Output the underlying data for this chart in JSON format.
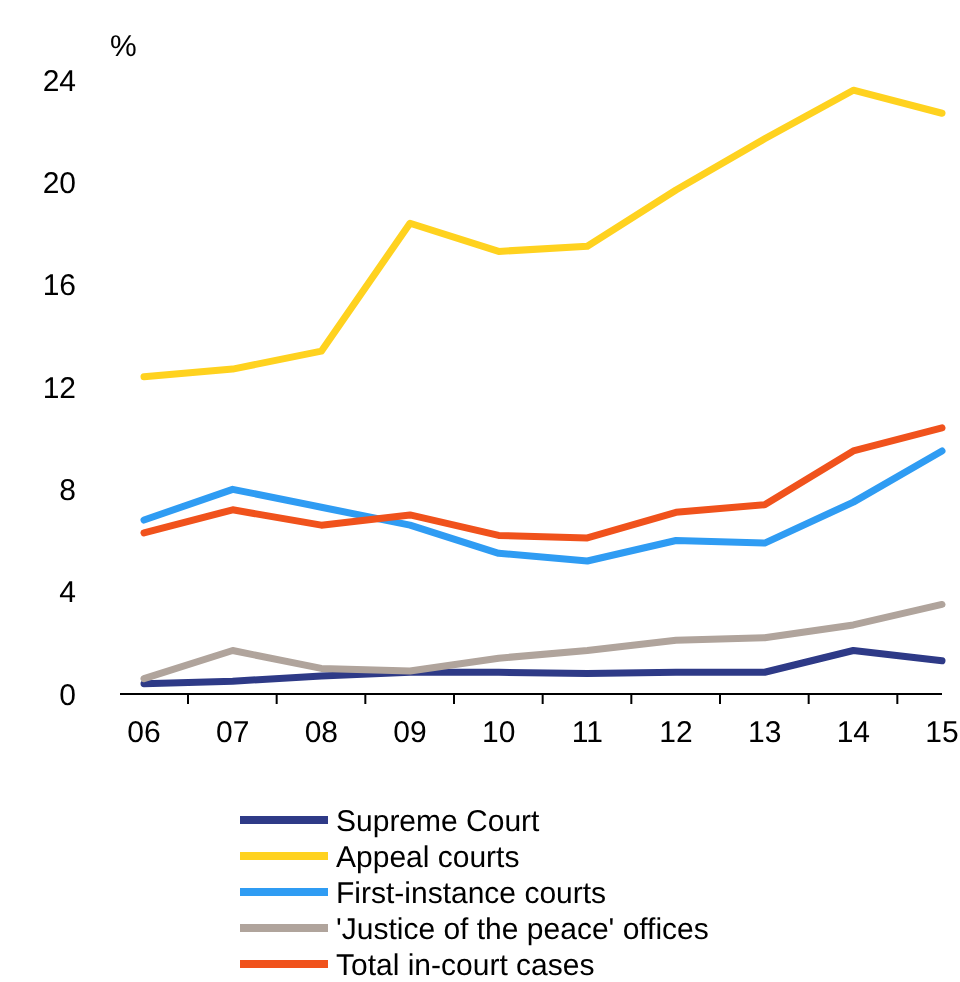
{
  "chart_data": {
    "type": "line",
    "ylabel": "%",
    "categories": [
      "06",
      "07",
      "08",
      "09",
      "10",
      "11",
      "12",
      "13",
      "14",
      "15"
    ],
    "ylim": [
      0,
      24
    ],
    "yticks": [
      0,
      4,
      8,
      12,
      16,
      20,
      24
    ],
    "grid": false,
    "legend": "bottom",
    "marker": "none",
    "line_style": "solid",
    "series": [
      {
        "name": "Supreme Court",
        "color": "#2e3a87",
        "values": [
          0.4,
          0.5,
          0.7,
          0.85,
          0.85,
          0.8,
          0.85,
          0.85,
          1.7,
          1.3
        ]
      },
      {
        "name": "Appeal courts",
        "color": "#ffd21f",
        "values": [
          12.4,
          12.7,
          13.4,
          18.4,
          17.3,
          17.5,
          19.7,
          21.7,
          23.6,
          22.7
        ]
      },
      {
        "name": "First-instance courts",
        "color": "#2f9cf3",
        "values": [
          6.8,
          8.0,
          7.3,
          6.6,
          5.5,
          5.2,
          6.0,
          5.9,
          7.5,
          9.5
        ]
      },
      {
        "name": "'Justice of the peace' offices",
        "color": "#b0a49c",
        "values": [
          0.6,
          1.7,
          1.0,
          0.9,
          1.4,
          1.7,
          2.1,
          2.2,
          2.7,
          3.5
        ]
      },
      {
        "name": "Total in-court cases",
        "color": "#f0521c",
        "values": [
          6.3,
          7.2,
          6.6,
          7.0,
          6.2,
          6.1,
          7.1,
          7.4,
          9.5,
          10.4
        ]
      }
    ]
  }
}
